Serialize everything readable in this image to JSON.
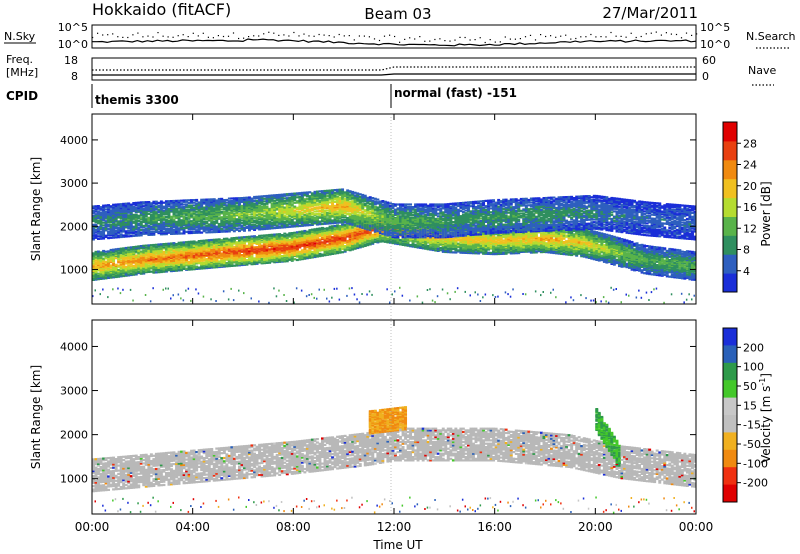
{
  "header": {
    "station": "Hokkaido (fitACF)",
    "beam": "Beam 03",
    "date": "27/Mar/2011"
  },
  "strips": {
    "nsky": {
      "label": "N.Sky",
      "ticks_left": [
        "10^5",
        "10^0"
      ]
    },
    "nsearch": {
      "label": "N.Search",
      "ticks_right": [
        "10^5",
        "10^0"
      ]
    },
    "freq": {
      "label_line1": "Freq.",
      "label_line2": "[MHz]",
      "ticks_left": [
        "18",
        "8"
      ]
    },
    "nave": {
      "label": "Nave",
      "ticks_right": [
        "60",
        "0"
      ]
    },
    "cpid": {
      "label": "CPID",
      "segments": [
        {
          "start_hour": 0,
          "text": "themis 3300"
        },
        {
          "start_hour": 12,
          "text": "normal (fast) -151"
        }
      ]
    }
  },
  "x_axis": {
    "label": "Time UT",
    "ticks": [
      "00:00",
      "04:00",
      "08:00",
      "12:00",
      "16:00",
      "20:00",
      "00:00"
    ]
  },
  "colors": {
    "power": [
      "#1a2ed8",
      "#2e5fbf",
      "#2f8f5f",
      "#59b34a",
      "#b5dc30",
      "#f0c020",
      "#f08a10",
      "#e84010",
      "#e00000"
    ],
    "velocity": [
      "#e00000",
      "#f03010",
      "#f08a10",
      "#f0b020",
      "#c0c0c0",
      "#c8c8c8",
      "#44c82a",
      "#2e9a4a",
      "#2a60b8",
      "#1a2ed8"
    ],
    "groundscatter": "#b8b8b8"
  },
  "chart_data": [
    {
      "type": "heatmap",
      "title": "Power",
      "ylabel": "Slant Range [km]",
      "xlabel": "",
      "xlim_hours": [
        0,
        24
      ],
      "ylim": [
        200,
        4600
      ],
      "yticks": [
        "1000",
        "2000",
        "3000",
        "4000"
      ],
      "colorbar": {
        "label": "Power [dB]",
        "range": [
          0,
          32
        ],
        "ticks": [
          "4",
          "8",
          "12",
          "16",
          "20",
          "24",
          "28"
        ]
      },
      "features": [
        {
          "name": "main band",
          "x_hours": [
            0,
            2,
            4,
            6,
            8,
            10,
            11.5,
            12,
            14,
            16,
            18,
            19.5,
            20.5,
            22,
            24
          ],
          "center_km": [
            1100,
            1250,
            1350,
            1450,
            1550,
            1750,
            2000,
            1950,
            1750,
            1700,
            1750,
            1650,
            1500,
            1250,
            1100
          ],
          "peak_db": [
            22,
            24,
            26,
            28,
            28,
            28,
            26,
            24,
            20,
            20,
            22,
            20,
            16,
            12,
            12
          ]
        },
        {
          "name": "upper band",
          "x_hours": [
            0,
            2,
            4,
            6,
            8,
            10,
            12,
            14,
            16,
            18,
            20,
            22,
            24
          ],
          "center_km": [
            2100,
            2200,
            2250,
            2300,
            2400,
            2500,
            2150,
            2150,
            2250,
            2300,
            2350,
            2200,
            2100
          ],
          "peak_db": [
            8,
            10,
            12,
            14,
            18,
            22,
            12,
            10,
            10,
            10,
            8,
            6,
            6
          ]
        }
      ]
    },
    {
      "type": "heatmap",
      "title": "Velocity",
      "ylabel": "Slant Range [km]",
      "xlabel": "Time UT",
      "xlim_hours": [
        0,
        24
      ],
      "ylim": [
        200,
        4600
      ],
      "yticks": [
        "1000",
        "2000",
        "3000",
        "4000"
      ],
      "colorbar": {
        "label": "Velocity [m s^-1]",
        "range": [
          -250,
          250
        ],
        "ticks": [
          "200",
          "100",
          "50",
          "15",
          "-15",
          "-50",
          "-100",
          "-200"
        ]
      },
      "features": [
        {
          "name": "groundscatter band",
          "x_hours": [
            0,
            4,
            8,
            11,
            12,
            16,
            19,
            21,
            24
          ],
          "center_km": [
            1100,
            1300,
            1500,
            1700,
            1800,
            1800,
            1650,
            1400,
            1200
          ]
        },
        {
          "name": "negative velocity patch",
          "x_hours": [
            11,
            12.5
          ],
          "center_km": [
            2300,
            2400
          ],
          "velocity": -60
        },
        {
          "name": "positive velocity streak",
          "x_hours": [
            20,
            21
          ],
          "center_km": [
            2400,
            1500
          ],
          "velocity": 60
        }
      ]
    }
  ]
}
